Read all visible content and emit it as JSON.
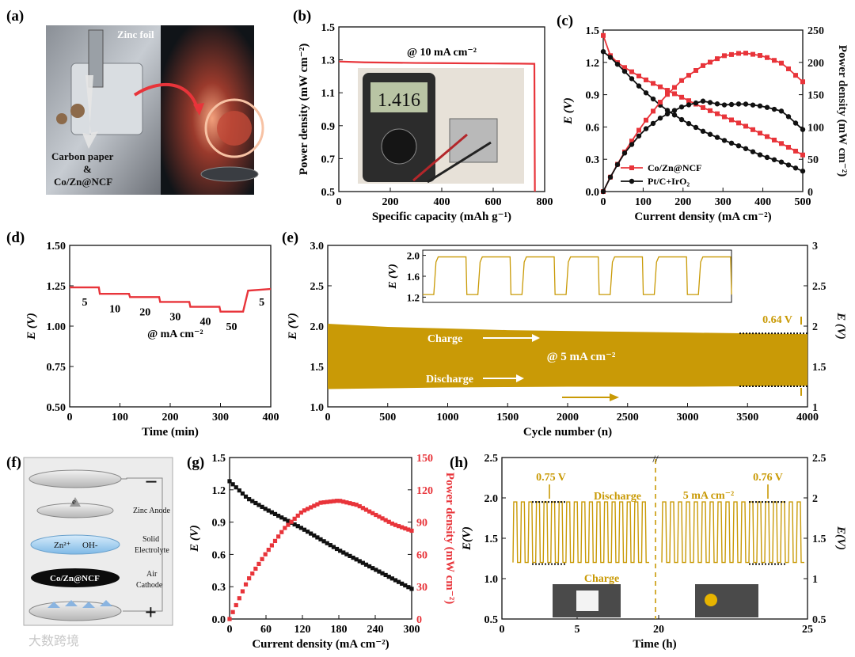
{
  "panel_labels": [
    "(a)",
    "(b)",
    "(c)",
    "(d)",
    "(e)",
    "(f)",
    "(g)",
    "(h)"
  ],
  "panel_a": {
    "zinc_label": "Zinc\nfoil",
    "cathode_label_1": "Carbon paper",
    "cathode_label_2": "&",
    "cathode_label_3": "Co/Zn@NCF"
  },
  "panel_f": {
    "layers": [
      "Zinc Anode",
      "Solid",
      "Electrolyte",
      "Air",
      "Cathode"
    ],
    "electron": "e",
    "ion_1": "Zn²⁺",
    "ion_2": "OH-",
    "cathode_disc": "Co/Zn@NCF",
    "minus": "−",
    "plus": "+"
  },
  "watermark": "大数跨境",
  "colors": {
    "red": "#e8343a",
    "black": "#111111",
    "gold": "#c99a06"
  },
  "chart_data": [
    {
      "id": "b",
      "type": "line",
      "xlabel": "Specific capacity (mAh g⁻¹)",
      "ylabel": "Power density (mW cm⁻²)",
      "xlim": [
        0,
        800
      ],
      "ylim": [
        0.5,
        1.5
      ],
      "xticks": [
        0,
        200,
        400,
        600,
        800
      ],
      "yticks": [
        0.5,
        0.7,
        0.9,
        1.1,
        1.3,
        1.5
      ],
      "annotation": "@ 10 mA cm⁻²",
      "meter_reading": "1.416",
      "series": [
        {
          "color": "#e8343a",
          "x": [
            0,
            100,
            200,
            300,
            400,
            500,
            600,
            700,
            760,
            762
          ],
          "y": [
            1.29,
            1.285,
            1.283,
            1.281,
            1.28,
            1.279,
            1.278,
            1.277,
            1.276,
            0.5
          ]
        }
      ]
    },
    {
      "id": "c",
      "type": "line",
      "xlabel": "Current density (mA cm⁻²)",
      "ylabel": "E (V)",
      "y2label": "Power density (mW cm⁻²)",
      "xlim": [
        0,
        500
      ],
      "ylim": [
        0,
        1.5
      ],
      "y2lim": [
        0,
        250
      ],
      "xticks": [
        0,
        100,
        200,
        300,
        400,
        500
      ],
      "yticks": [
        0.0,
        0.3,
        0.6,
        0.9,
        1.2,
        1.5
      ],
      "y2ticks": [
        0,
        50,
        100,
        150,
        200,
        250
      ],
      "legend": [
        "Co/Zn@NCF",
        "Pt/C+IrO₂"
      ],
      "legend_position": "bottom-left",
      "series": [
        {
          "name": "Co/Zn@NCF",
          "axis": "left",
          "color": "#e8343a",
          "marker": "square",
          "x": [
            0,
            20,
            50,
            100,
            150,
            200,
            250,
            300,
            350,
            400,
            450,
            500
          ],
          "y": [
            1.45,
            1.24,
            1.16,
            1.05,
            0.96,
            0.87,
            0.78,
            0.7,
            0.62,
            0.53,
            0.44,
            0.34
          ]
        },
        {
          "name": "Pt/C+IrO₂",
          "axis": "left",
          "color": "#111111",
          "marker": "circle",
          "x": [
            0,
            20,
            50,
            100,
            150,
            200,
            250,
            300,
            350,
            400,
            450,
            500
          ],
          "y": [
            1.3,
            1.24,
            1.13,
            0.94,
            0.78,
            0.66,
            0.56,
            0.48,
            0.41,
            0.33,
            0.27,
            0.19
          ]
        },
        {
          "axis": "right",
          "color": "#e8343a",
          "marker": "square",
          "x": [
            0,
            20,
            50,
            100,
            150,
            200,
            250,
            300,
            350,
            400,
            450,
            500
          ],
          "y": [
            0,
            25,
            58,
            105,
            144,
            174,
            195,
            210,
            215,
            210,
            198,
            170
          ]
        },
        {
          "axis": "right",
          "color": "#111111",
          "marker": "circle",
          "x": [
            0,
            20,
            50,
            100,
            150,
            200,
            250,
            300,
            350,
            400,
            450,
            500
          ],
          "y": [
            0,
            25,
            57,
            94,
            117,
            132,
            140,
            134,
            136,
            132,
            124,
            96
          ]
        }
      ]
    },
    {
      "id": "d",
      "type": "line",
      "xlabel": "Time (min)",
      "ylabel": "E (V)",
      "xlim": [
        0,
        400
      ],
      "ylim": [
        0.5,
        1.5
      ],
      "xticks": [
        0,
        100,
        200,
        300,
        400
      ],
      "yticks": [
        0.5,
        0.75,
        1.0,
        1.25,
        1.5
      ],
      "annotation": "@ mA cm⁻²",
      "step_labels": [
        "5",
        "10",
        "20",
        "30",
        "40",
        "50",
        "5"
      ],
      "series": [
        {
          "color": "#e8343a",
          "x": [
            0,
            58,
            60,
            118,
            120,
            178,
            180,
            238,
            240,
            298,
            300,
            345,
            355,
            400
          ],
          "y": [
            1.24,
            1.24,
            1.2,
            1.2,
            1.18,
            1.18,
            1.15,
            1.15,
            1.12,
            1.12,
            1.09,
            1.09,
            1.22,
            1.23
          ]
        }
      ]
    },
    {
      "id": "e",
      "type": "area",
      "xlabel": "Cycle number (n)",
      "ylabel": "E (V)",
      "xlim": [
        0,
        4000
      ],
      "ylim": [
        1.0,
        3.0
      ],
      "xticks": [
        0,
        500,
        1000,
        1500,
        2000,
        2500,
        3000,
        3500,
        4000
      ],
      "yticks": [
        1.0,
        1.5,
        2.0,
        2.5,
        3.0
      ],
      "annotation": "@ 5 mA cm⁻²",
      "charge_label": "Charge",
      "discharge_label": "Discharge",
      "gap_label": "0.64 V",
      "series": [
        {
          "color": "#c99a06",
          "x": [
            0,
            500,
            1000,
            1500,
            2000,
            2500,
            3000,
            3500,
            4000
          ],
          "upper": [
            2.03,
            1.99,
            1.97,
            1.95,
            1.94,
            1.93,
            1.92,
            1.91,
            1.9
          ],
          "lower": [
            1.22,
            1.23,
            1.24,
            1.245,
            1.25,
            1.25,
            1.25,
            1.255,
            1.26
          ]
        }
      ],
      "inset": {
        "ylabel": "E (V)",
        "yticks": [
          1.2,
          1.6,
          2.0
        ],
        "ylim": [
          1.1,
          2.1
        ],
        "cycles": 7,
        "charge": 1.97,
        "discharge": 1.25
      }
    },
    {
      "id": "g",
      "type": "line",
      "xlabel": "Current density (mA cm⁻²)",
      "ylabel": "E (V)",
      "y2label": "Power density (mW cm⁻²)",
      "xlim": [
        0,
        300
      ],
      "ylim": [
        0,
        1.5
      ],
      "y2lim": [
        0,
        150
      ],
      "xticks": [
        0,
        60,
        120,
        180,
        240,
        300
      ],
      "yticks": [
        0.0,
        0.3,
        0.6,
        0.9,
        1.2,
        1.5
      ],
      "y2ticks": [
        0,
        30,
        60,
        90,
        120,
        150
      ],
      "series": [
        {
          "axis": "left",
          "color": "#111111",
          "x": [
            0,
            30,
            60,
            90,
            120,
            150,
            180,
            210,
            240,
            270,
            300
          ],
          "y": [
            1.28,
            1.12,
            1.02,
            0.93,
            0.84,
            0.74,
            0.64,
            0.55,
            0.46,
            0.37,
            0.28
          ]
        },
        {
          "axis": "right",
          "color": "#e8343a",
          "x": [
            0,
            30,
            60,
            90,
            120,
            150,
            180,
            210,
            240,
            270,
            300
          ],
          "y": [
            0,
            36,
            61,
            84,
            100,
            108,
            110,
            106,
            97,
            88,
            82
          ]
        }
      ]
    },
    {
      "id": "h",
      "type": "line",
      "xlabel": "Time (h)",
      "ylabel": "E(V)",
      "y2label": "E(V)",
      "xlim": [
        0,
        25
      ],
      "ylim": [
        0.5,
        2.5
      ],
      "xticks": [
        0,
        5,
        20,
        25
      ],
      "yticks": [
        0.5,
        1.0,
        1.5,
        2.0,
        2.5
      ],
      "charge_label": "Charge",
      "discharge_label": "Discharge",
      "annotation": "5 mA cm⁻²",
      "gap_labels": [
        "0.75 V",
        "0.76 V"
      ],
      "series": [
        {
          "color": "#c99a06",
          "charge": 1.95,
          "discharge": 1.2,
          "cycles_left": 18,
          "cycles_right": 18
        }
      ]
    }
  ]
}
